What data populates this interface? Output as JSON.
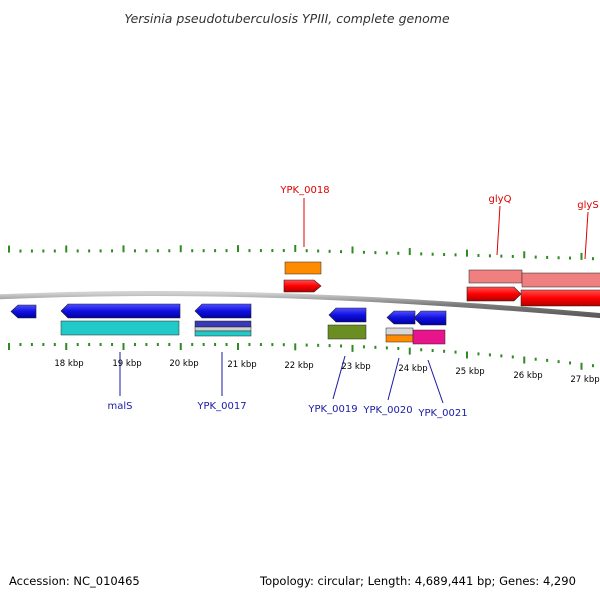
{
  "title": "Yersinia pseudotuberculosis YPIII, complete genome",
  "footer": {
    "accession": "Accession: NC_010465",
    "summary": "Topology: circular; Length: 4,689,441 bp; Genes: 4,290"
  },
  "colors": {
    "tick": "#2e8b22",
    "backbone": "#808080",
    "gene_blue": "#1010e0",
    "gene_red": "#ff0000",
    "rna_cyan": "#22c9c9",
    "rna_orange": "#ff8c00",
    "rna_olive": "#6b8e23",
    "rna_pink": "#e8148c",
    "rna_salmon": "#f08080",
    "label_blue": "#1a1aa6",
    "label_red": "#dd0000"
  },
  "scale_labels": [
    "18 kbp",
    "19 kbp",
    "20 kbp",
    "21 kbp",
    "22 kbp",
    "23 kbp",
    "24 kbp",
    "25 kbp",
    "26 kbp",
    "27 kbp"
  ],
  "forward_labels": {
    "ypk_0018": "YPK_0018",
    "glyq": "glyQ",
    "glys": "glyS"
  },
  "reverse_labels": {
    "mals": "malS",
    "ypk_0017": "YPK_0017",
    "ypk_0019": "YPK_0019",
    "ypk_0020": "YPK_0020",
    "ypk_0021": "YPK_0021"
  }
}
